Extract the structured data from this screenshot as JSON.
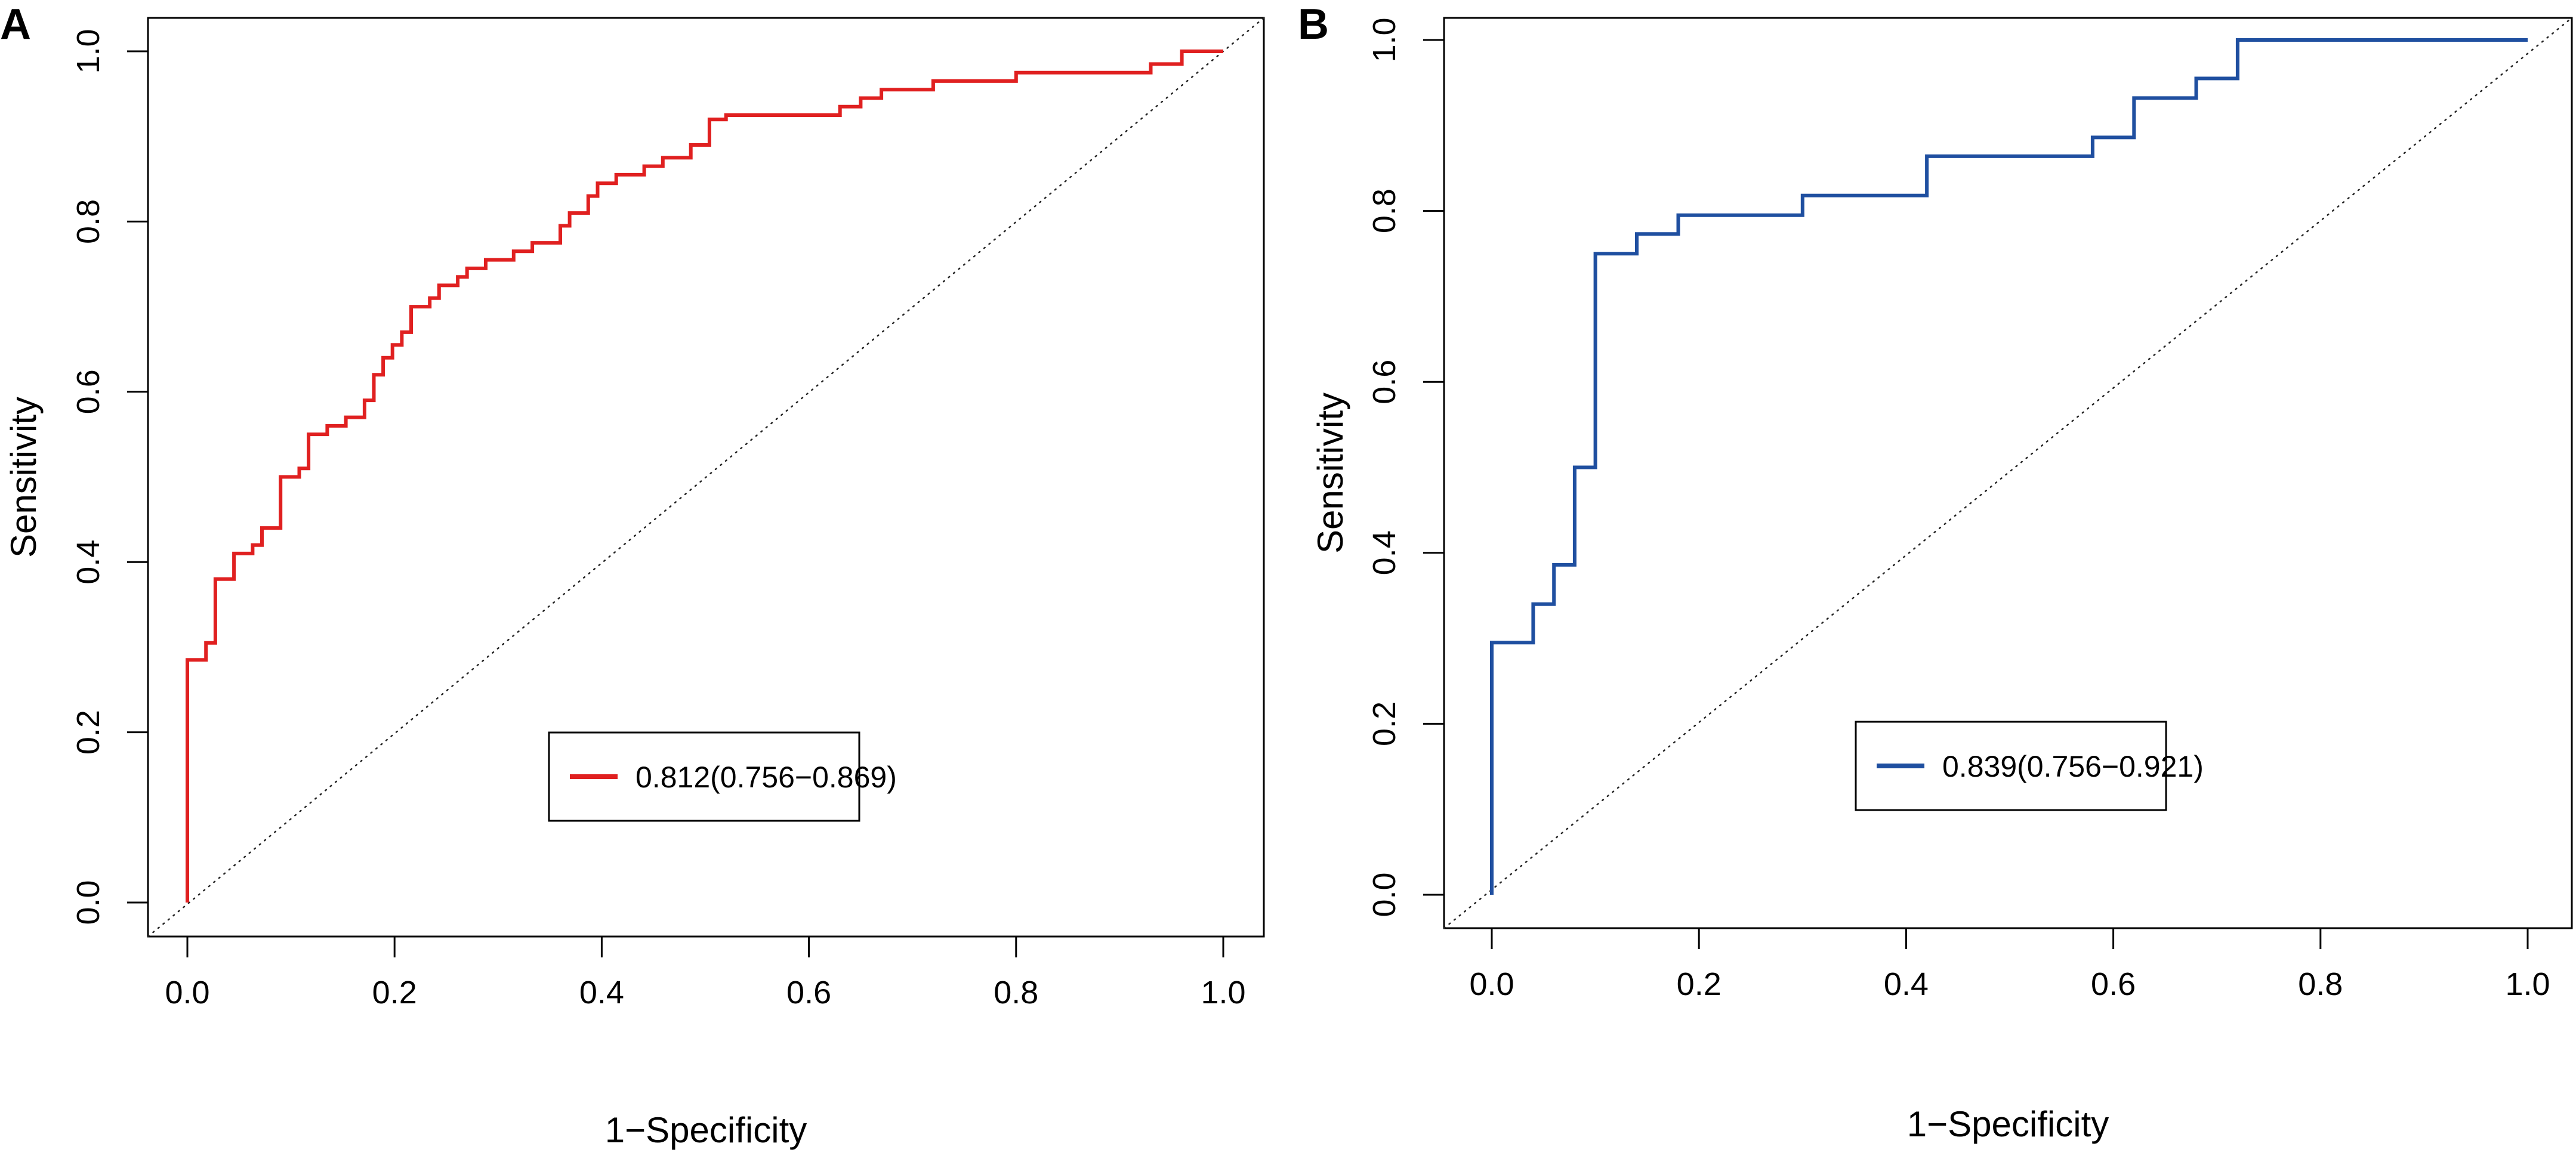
{
  "chart_data": [
    {
      "type": "line",
      "panel_label": "A",
      "xlabel": "1−Specificity",
      "ylabel": "Sensitivity",
      "xlim": [
        0,
        1
      ],
      "ylim": [
        0,
        1
      ],
      "x_ticks": [
        "0.0",
        "0.2",
        "0.4",
        "0.6",
        "0.8",
        "1.0"
      ],
      "y_ticks": [
        "0.0",
        "0.2",
        "0.4",
        "0.6",
        "0.8",
        "1.0"
      ],
      "grid": false,
      "reference_line": "diagonal-dotted",
      "legend_position": "bottom-center",
      "series": [
        {
          "name": "0.812(0.756−0.869)",
          "color": "#e02020",
          "x": [
            0,
            0,
            0.018,
            0.018,
            0.027,
            0.027,
            0.045,
            0.045,
            0.063,
            0.063,
            0.072,
            0.072,
            0.09,
            0.09,
            0.108,
            0.108,
            0.117,
            0.117,
            0.135,
            0.135,
            0.153,
            0.153,
            0.171,
            0.171,
            0.18,
            0.18,
            0.189,
            0.189,
            0.198,
            0.198,
            0.207,
            0.207,
            0.216,
            0.216,
            0.234,
            0.234,
            0.243,
            0.243,
            0.261,
            0.261,
            0.27,
            0.27,
            0.288,
            0.288,
            0.315,
            0.315,
            0.333,
            0.333,
            0.36,
            0.36,
            0.369,
            0.369,
            0.387,
            0.387,
            0.396,
            0.396,
            0.414,
            0.414,
            0.441,
            0.441,
            0.459,
            0.459,
            0.486,
            0.486,
            0.504,
            0.504,
            0.52,
            0.52,
            0.63,
            0.63,
            0.65,
            0.65,
            0.67,
            0.67,
            0.72,
            0.72,
            0.8,
            0.8,
            0.93,
            0.93,
            0.96,
            0.96,
            1
          ],
          "y": [
            0,
            0.285,
            0.285,
            0.305,
            0.305,
            0.38,
            0.38,
            0.41,
            0.41,
            0.42,
            0.42,
            0.44,
            0.44,
            0.5,
            0.5,
            0.51,
            0.51,
            0.55,
            0.55,
            0.56,
            0.56,
            0.57,
            0.57,
            0.59,
            0.59,
            0.62,
            0.62,
            0.64,
            0.64,
            0.655,
            0.655,
            0.67,
            0.67,
            0.7,
            0.7,
            0.71,
            0.71,
            0.725,
            0.725,
            0.735,
            0.735,
            0.745,
            0.745,
            0.755,
            0.755,
            0.765,
            0.765,
            0.775,
            0.775,
            0.795,
            0.795,
            0.81,
            0.81,
            0.83,
            0.83,
            0.845,
            0.845,
            0.855,
            0.855,
            0.865,
            0.865,
            0.875,
            0.875,
            0.89,
            0.89,
            0.92,
            0.92,
            0.925,
            0.925,
            0.935,
            0.935,
            0.945,
            0.945,
            0.955,
            0.955,
            0.965,
            0.965,
            0.975,
            0.975,
            0.985,
            0.985,
            1,
            1
          ]
        }
      ]
    },
    {
      "type": "line",
      "panel_label": "B",
      "xlabel": "1−Specificity",
      "ylabel": "Sensitivity",
      "xlim": [
        0,
        1
      ],
      "ylim": [
        0,
        1
      ],
      "x_ticks": [
        "0.0",
        "0.2",
        "0.4",
        "0.6",
        "0.8",
        "1.0"
      ],
      "y_ticks": [
        "0.0",
        "0.2",
        "0.4",
        "0.6",
        "0.8",
        "1.0"
      ],
      "grid": false,
      "reference_line": "diagonal-dotted",
      "legend_position": "bottom-center",
      "series": [
        {
          "name": "0.839(0.756−0.921)",
          "color": "#1f4fa0",
          "x": [
            0,
            0,
            0.04,
            0.04,
            0.06,
            0.06,
            0.08,
            0.08,
            0.1,
            0.1,
            0.14,
            0.14,
            0.18,
            0.18,
            0.3,
            0.3,
            0.42,
            0.42,
            0.58,
            0.58,
            0.62,
            0.62,
            0.68,
            0.68,
            0.72,
            0.72,
            1
          ],
          "y": [
            0,
            0.295,
            0.295,
            0.34,
            0.34,
            0.386,
            0.386,
            0.5,
            0.5,
            0.75,
            0.75,
            0.773,
            0.773,
            0.795,
            0.795,
            0.818,
            0.818,
            0.864,
            0.864,
            0.886,
            0.886,
            0.932,
            0.932,
            0.955,
            0.955,
            1,
            1
          ]
        }
      ]
    }
  ]
}
